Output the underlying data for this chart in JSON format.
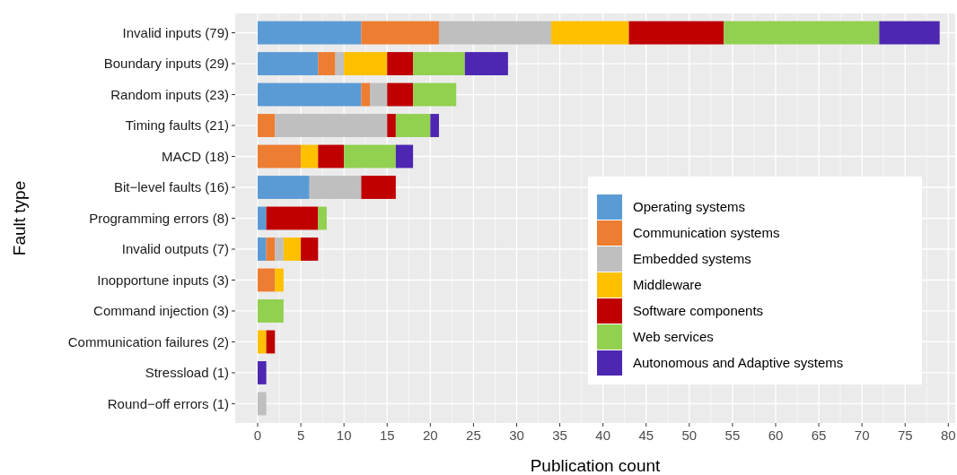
{
  "chart_data": {
    "type": "bar",
    "orientation": "horizontal",
    "stacked": true,
    "xlabel": "Publication count",
    "ylabel": "Fault type",
    "categories": [
      "Invalid inputs (79)",
      "Boundary inputs (29)",
      "Random inputs (23)",
      "Timing faults (21)",
      "MACD (18)",
      "Bit−level faults (16)",
      "Programming errors (8)",
      "Invalid outputs (7)",
      "Inopportune inputs (3)",
      "Command injection (3)",
      "Communication failures (2)",
      "Stressload (1)",
      "Round−off errors (1)"
    ],
    "series": [
      {
        "name": "Operating systems",
        "color": "#5b9bd5",
        "values": [
          12,
          7,
          12,
          0,
          0,
          6,
          1,
          1,
          0,
          0,
          0,
          0,
          0
        ]
      },
      {
        "name": "Communication systems",
        "color": "#ed7d31",
        "values": [
          9,
          2,
          1,
          2,
          5,
          0,
          0,
          1,
          2,
          0,
          0,
          0,
          0
        ]
      },
      {
        "name": "Embedded systems",
        "color": "#bfbfbf",
        "values": [
          13,
          1,
          2,
          13,
          0,
          6,
          0,
          1,
          0,
          0,
          0,
          0,
          1
        ]
      },
      {
        "name": "Middleware",
        "color": "#ffc000",
        "values": [
          9,
          5,
          0,
          0,
          2,
          0,
          0,
          2,
          1,
          0,
          1,
          0,
          0
        ]
      },
      {
        "name": "Software components",
        "color": "#c00000",
        "values": [
          11,
          3,
          3,
          1,
          3,
          4,
          6,
          2,
          0,
          0,
          1,
          0,
          0
        ]
      },
      {
        "name": "Web services",
        "color": "#92d050",
        "values": [
          18,
          6,
          5,
          4,
          6,
          0,
          1,
          0,
          0,
          3,
          0,
          0,
          0
        ]
      },
      {
        "name": "Autonomous and Adaptive systems",
        "color": "#4d27b1",
        "values": [
          7,
          5,
          0,
          1,
          2,
          0,
          0,
          0,
          0,
          0,
          0,
          1,
          0
        ]
      }
    ],
    "xlim": [
      -2.6,
      80.8
    ],
    "xticks": [
      0,
      5,
      10,
      15,
      20,
      25,
      30,
      35,
      40,
      45,
      50,
      55,
      60,
      65,
      70,
      75,
      80
    ],
    "grid": true,
    "legend": "bottom right"
  }
}
